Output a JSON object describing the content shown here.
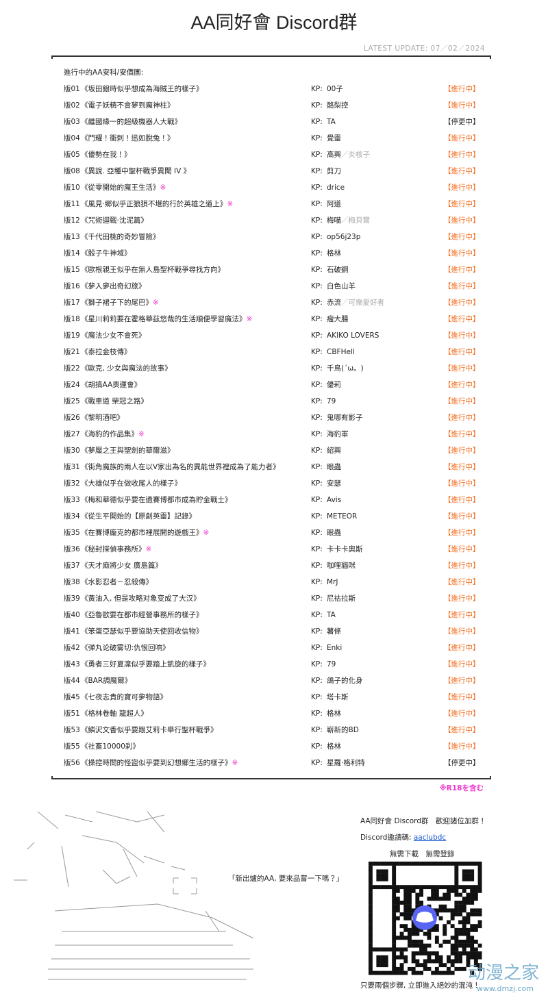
{
  "header": {
    "title": "AA同好會 Discord群",
    "update": "LATEST UPDATE: 07／02／2024"
  },
  "list": {
    "heading": "進行中的AA安科/安價團:",
    "kp_label": "KP:",
    "rows": [
      {
        "id": "版01",
        "title": "《坂田銀時似乎想成為海賊王的樣子》",
        "kp": "00子",
        "status": "【進行中】"
      },
      {
        "id": "版02",
        "title": "《電子妖精不會夢到魔神柱》",
        "kp": "酪梨控",
        "status": "【進行中】"
      },
      {
        "id": "版03",
        "title": "《繼國緣一的超級機器人大戰》",
        "kp": "TA",
        "status": "【停更中】"
      },
      {
        "id": "版04",
        "title": "《鬥耀！衝刺！迅如脫兔！》",
        "kp": "覺靈",
        "status": "【進行中】"
      },
      {
        "id": "版05",
        "title": "《優勢在我！》",
        "kp": "高興",
        "kp_alt": "／炎核子",
        "status": "【進行中】"
      },
      {
        "id": "版08",
        "title": "《異說. 亞種中聖杯戰爭異聞 IV 》",
        "kp": "剪刀",
        "status": "【進行中】"
      },
      {
        "id": "版10",
        "title": "《從零開始的魔王生活》",
        "mark": "※",
        "kp": "drice",
        "status": "【進行中】"
      },
      {
        "id": "版11",
        "title": "《風見·鄉似乎正狼狽不堪的行於英雄之道上》",
        "mark": "※",
        "kp": "阿道",
        "status": "【進行中】"
      },
      {
        "id": "版12",
        "title": "《咒術迴戰·沈泥篇》",
        "kp": "梅喵",
        "kp_alt": "／梅貝爾",
        "status": "【進行中】"
      },
      {
        "id": "版13",
        "title": "《千代田桃的奇妙冒險》",
        "kp": "op56j23p",
        "status": "【進行中】"
      },
      {
        "id": "版14",
        "title": "《骰子牛神域》",
        "kp": "格林",
        "status": "【進行中】"
      },
      {
        "id": "版15",
        "title": "《歐根親王似乎在無人島聖杯戰爭尋找方向》",
        "kp": "石破鋼",
        "status": "【進行中】"
      },
      {
        "id": "版16",
        "title": "《夢入夢出奇幻旅》",
        "kp": "白色山羊",
        "status": "【進行中】"
      },
      {
        "id": "版17",
        "title": "《獅子裙子下的尾巴》",
        "mark": "※",
        "kp": "赤流",
        "kp_alt": "／可樂愛好者",
        "status": "【進行中】"
      },
      {
        "id": "版18",
        "title": "《星川莉莉要在霍格華茲悠哉的生活順便學習魔法》",
        "mark": "※",
        "kp": "瘤大腸",
        "status": "【進行中】"
      },
      {
        "id": "版19",
        "title": "《魔法少女不會死》",
        "kp": "AKIKO LOVERS",
        "status": "【進行中】"
      },
      {
        "id": "版21",
        "title": "《泰拉金枝傳》",
        "kp": "CBFHell",
        "status": "【進行中】"
      },
      {
        "id": "版22",
        "title": "《歐克, 少女與魔法的故事》",
        "kp": "千鳥(´ω。)",
        "status": "【進行中】"
      },
      {
        "id": "版24",
        "title": "《胡搞AA奧運會》",
        "kp": "優莉",
        "status": "【進行中】"
      },
      {
        "id": "版25",
        "title": "《戰車道 榮冠之路》",
        "kp": "79",
        "status": "【進行中】"
      },
      {
        "id": "版26",
        "title": "《黎明酒吧》",
        "kp": "鬼哪有影子",
        "status": "【進行中】"
      },
      {
        "id": "版27",
        "title": "《海豹的作品集》",
        "mark": "※",
        "kp": "海豹軍",
        "status": "【進行中】"
      },
      {
        "id": "版30",
        "title": "《夢魘之王與聖劍的華爾滋》",
        "kp": "紹興",
        "status": "【進行中】"
      },
      {
        "id": "版31",
        "title": "《街角魔族的兩人在以V家出為名的異能世界裡成為了能力者》",
        "kp": "眼蟲",
        "status": "【進行中】"
      },
      {
        "id": "版32",
        "title": "《大雄似乎在做收尾人的樣子》",
        "kp": "安瑟",
        "status": "【進行中】"
      },
      {
        "id": "版33",
        "title": "《梅和華德似乎要在遺賽博都市成為貯金戰士》",
        "kp": "Avis",
        "status": "【進行中】"
      },
      {
        "id": "版34",
        "title": "《從生平開始的【原創英靈】記錄》",
        "kp": "METEOR",
        "status": "【進行中】"
      },
      {
        "id": "版35",
        "title": "《在賽博龐克的都市裡展開的遊戲王》",
        "mark": "※",
        "kp": "眼蟲",
        "status": "【進行中】"
      },
      {
        "id": "版36",
        "title": "《秘封探偵事務所》",
        "mark": "※",
        "kp": "卡卡卡奧斯",
        "status": "【進行中】"
      },
      {
        "id": "版37",
        "title": "《天才麻將少女 廣島篇》",
        "kp": "咖哩貓咪",
        "status": "【進行中】"
      },
      {
        "id": "版38",
        "title": "《水影忍者－忍殺傳》",
        "kp": "MrJ",
        "status": "【進行中】"
      },
      {
        "id": "版39",
        "title": "《黃油入, 但是攻略对象变成了大汉》",
        "kp": "尼祜拉斯",
        "status": "【進行中】"
      },
      {
        "id": "版40",
        "title": "《亞魯歐要在都市經營事務所的樣子》",
        "kp": "TA",
        "status": "【進行中】"
      },
      {
        "id": "版41",
        "title": "《笨蛋亞瑟似乎要協助天使回收信物》",
        "kp": "薯條",
        "status": "【進行中】"
      },
      {
        "id": "版42",
        "title": "《弹丸论破雾切:仇恨回响》",
        "kp": "Enki",
        "status": "【進行中】"
      },
      {
        "id": "版43",
        "title": "《勇者三好夏凜似乎要踏上凱旋的樣子》",
        "kp": "79",
        "status": "【進行中】"
      },
      {
        "id": "版44",
        "title": "《BAR調魔爾》",
        "kp": "鴿子的化身",
        "status": "【進行中】"
      },
      {
        "id": "版45",
        "title": "《七夜志貴的寶可夢物語》",
        "kp": "塔卡斯",
        "status": "【進行中】"
      },
      {
        "id": "版51",
        "title": "《格林卷軸 龍超人》",
        "kp": "格林",
        "status": "【進行中】"
      },
      {
        "id": "版53",
        "title": "《鱗沢文香似乎要跟艾莉卡舉行聖杯戰爭》",
        "kp": "嶄新的BD",
        "status": "【進行中】"
      },
      {
        "id": "版55",
        "title": "《社畜10000刹》",
        "kp": "格林",
        "status": "【進行中】"
      },
      {
        "id": "版56",
        "title": "《操控時間的怪盜似乎要到幻想鄉生活的樣子》",
        "mark": "※",
        "kp": "星羅·格利特",
        "status": "【停更中】"
      }
    ],
    "r18_note": "※R18を含む"
  },
  "footer": {
    "quote": "「新出爐的AA, 要來品嘗一下嗎？」",
    "invite_title": "AA同好會 Discord群　歡迎諸位加群！",
    "invite_label": "Discord邀請碼:",
    "invite_code": "aaclubdc",
    "no_need": "無需下載　無需登錄",
    "steps": "只要兩個步驟, 立即進入絕妙的混沌！",
    "watermark": "动漫之家",
    "watermark_url": "www.dmzj.com"
  }
}
